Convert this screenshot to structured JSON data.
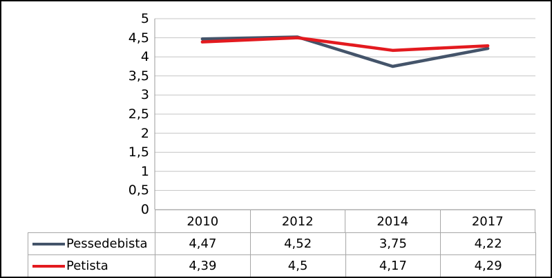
{
  "chart_data": {
    "type": "line",
    "categories": [
      "2010",
      "2012",
      "2014",
      "2017"
    ],
    "series": [
      {
        "name": "Pessedebista",
        "values": [
          4.47,
          4.52,
          3.75,
          4.22
        ],
        "display_values": [
          "4,47",
          "4,52",
          "3,75",
          "4,22"
        ],
        "color": "#44546A"
      },
      {
        "name": "Petista",
        "values": [
          4.39,
          4.5,
          4.17,
          4.29
        ],
        "display_values": [
          "4,39",
          "4,5",
          "4,17",
          "4,29"
        ],
        "color": "#E31A1F"
      }
    ],
    "title": "",
    "xlabel": "",
    "ylabel": "",
    "ylim": [
      0,
      5
    ],
    "ytick_step": 0.5,
    "ytick_labels": [
      "0",
      "0,5",
      "1",
      "1,5",
      "2",
      "2,5",
      "3",
      "3,5",
      "4",
      "4,5",
      "5"
    ],
    "grid": true,
    "legend_position": "bottom-table-left"
  },
  "table": {
    "columns": [
      "2010",
      "2012",
      "2014",
      "2017"
    ],
    "rows": [
      {
        "label": "Pessedebista",
        "values": [
          "4,47",
          "4,52",
          "3,75",
          "4,22"
        ]
      },
      {
        "label": "Petista",
        "values": [
          "4,39",
          "4,5",
          "4,17",
          "4,29"
        ]
      }
    ]
  },
  "colors": {
    "series_pessedebista": "#44546A",
    "series_petista": "#E31A1F",
    "gridline": "#C4C4C4",
    "axis_line": "#9B9B9B",
    "table_border": "#A6A6A6",
    "frame_border": "#000000",
    "background": "#FFFFFF"
  }
}
